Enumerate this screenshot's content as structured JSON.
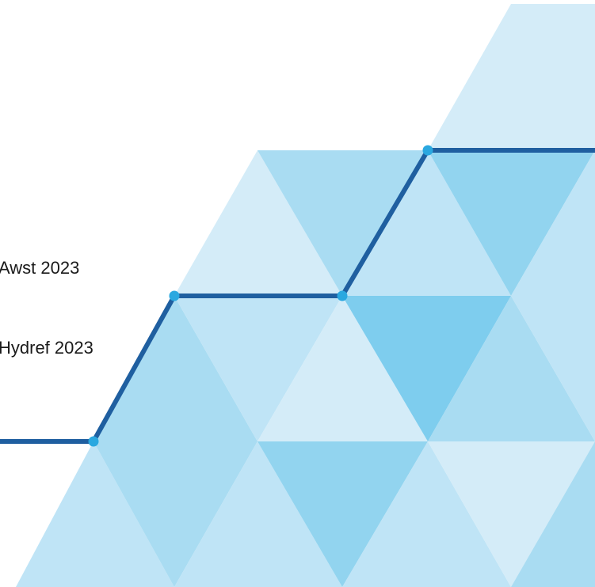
{
  "colors": {
    "line": "#1f5fa0",
    "dot": "#2aa8e0",
    "tri_very_light": "#d4ecf8",
    "tri_light": "#bfe4f6",
    "tri_mid": "#a9dcf2",
    "tri_deep": "#92d4ef",
    "tri_deepest": "#7ecdee"
  },
  "text": {
    "line_1": "Awst 2023",
    "line_2": "Hydref 2023"
  }
}
